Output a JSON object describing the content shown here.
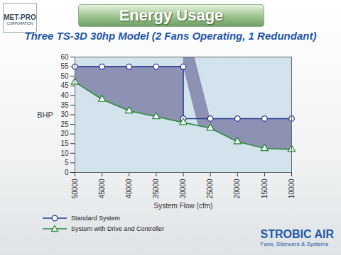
{
  "chart_data": {
    "type": "line",
    "title": "Energy Usage",
    "subtitle": "Three TS-3D 30hp Model (2 Fans Operating, 1 Redundant)",
    "x_label": "System Flow (cfm)",
    "y_label": "BHP",
    "xlim": [
      50000,
      10000
    ],
    "xticks": [
      50000,
      45000,
      40000,
      35000,
      30000,
      25000,
      20000,
      15000,
      10000
    ],
    "ylim": [
      0,
      60
    ],
    "yticks": [
      0,
      5,
      10,
      15,
      20,
      25,
      30,
      35,
      40,
      45,
      50,
      55,
      60
    ],
    "grid": false,
    "legend": "bottom",
    "series": [
      {
        "name": "Standard System",
        "color": "#2b3a8f",
        "marker": "circle",
        "x": [
          50000,
          45000,
          40000,
          35000,
          30000,
          30000,
          25000,
          20000,
          15000,
          10000
        ],
        "values": [
          55,
          55,
          55,
          55,
          55,
          28,
          28,
          28,
          28,
          28
        ]
      },
      {
        "name": "System with Drive and Controller",
        "color": "#2e8b3a",
        "marker": "triangle",
        "x": [
          50000,
          45000,
          40000,
          35000,
          30000,
          25000,
          20000,
          15000,
          10000
        ],
        "values": [
          47,
          38,
          32,
          29,
          26,
          23,
          16,
          12.5,
          12
        ]
      }
    ],
    "annotations": [
      "MET-PRO",
      "CORPORATION",
      "STROBIC AIR",
      "Fans, Silencers & Systems"
    ]
  }
}
